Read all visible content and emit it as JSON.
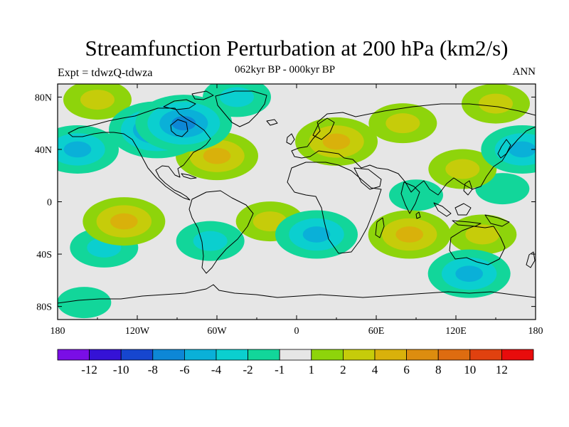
{
  "title": "Streamfunction Perturbation at 200 hPa (km2/s)",
  "subtitle_left": "Expt = tdwzQ-tdwza",
  "subtitle_center": "062kyr BP - 000kyr BP",
  "subtitle_right": "ANN",
  "map": {
    "projection": "cylindrical equidistant",
    "lon_range": [
      -180,
      180
    ],
    "lat_range": [
      -90,
      90
    ],
    "background_color": "#e6e6e6",
    "coastline_color": "#000000",
    "lon_ticks": [
      {
        "value": -180,
        "label": "180"
      },
      {
        "value": -120,
        "label": "120W"
      },
      {
        "value": -60,
        "label": "60W"
      },
      {
        "value": 0,
        "label": "0"
      },
      {
        "value": 60,
        "label": "60E"
      },
      {
        "value": 120,
        "label": "120E"
      },
      {
        "value": 180,
        "label": "180"
      }
    ],
    "lat_ticks": [
      {
        "value": 80,
        "label": "80N"
      },
      {
        "value": 40,
        "label": "40N"
      },
      {
        "value": 0,
        "label": "0"
      },
      {
        "value": -40,
        "label": "40S"
      },
      {
        "value": -80,
        "label": "80S"
      }
    ]
  },
  "colorbar": {
    "colors": [
      "#7a0ee6",
      "#3512d6",
      "#1646cf",
      "#0d87d6",
      "#0ab0d8",
      "#0bcfcf",
      "#12d69a",
      "#e6e6e6",
      "#8ed40b",
      "#c6cc0a",
      "#d9b10b",
      "#dd8d0f",
      "#de6c10",
      "#e0410f",
      "#e80c0c"
    ],
    "labels": [
      "-12",
      "-10",
      "-8",
      "-6",
      "-4",
      "-2",
      "-1",
      "1",
      "2",
      "4",
      "6",
      "8",
      "10",
      "12"
    ]
  },
  "chart_data": {
    "type": "heatmap",
    "variable": "Streamfunction Perturbation at 200 hPa (km2/s)",
    "comparison": "062kyr BP - 000kyr BP",
    "experiment": "tdwzQ-tdwza",
    "season": "ANN",
    "levels": [
      -12,
      -10,
      -8,
      -6,
      -4,
      -2,
      -1,
      1,
      2,
      4,
      6,
      8,
      10,
      12
    ],
    "features": [
      {
        "lon": -85,
        "lat": 60,
        "value": -7
      },
      {
        "lon": -105,
        "lat": 55,
        "value": -6
      },
      {
        "lon": -45,
        "lat": 80,
        "value": -3
      },
      {
        "lon": -165,
        "lat": 40,
        "value": -5
      },
      {
        "lon": 170,
        "lat": 40,
        "value": -5
      },
      {
        "lon": -60,
        "lat": 35,
        "value": 4
      },
      {
        "lon": -150,
        "lat": 78,
        "value": 2
      },
      {
        "lon": 30,
        "lat": 46,
        "value": 4
      },
      {
        "lon": 80,
        "lat": 60,
        "value": 2
      },
      {
        "lon": 150,
        "lat": 75,
        "value": 2
      },
      {
        "lon": 125,
        "lat": 25,
        "value": 2
      },
      {
        "lon": 155,
        "lat": 10,
        "value": -1.5
      },
      {
        "lon": 90,
        "lat": 5,
        "value": -1.5
      },
      {
        "lon": -130,
        "lat": -15,
        "value": 4
      },
      {
        "lon": -20,
        "lat": -15,
        "value": 2
      },
      {
        "lon": 15,
        "lat": -25,
        "value": -4
      },
      {
        "lon": 85,
        "lat": -25,
        "value": 5
      },
      {
        "lon": 140,
        "lat": -25,
        "value": 3
      },
      {
        "lon": -65,
        "lat": -30,
        "value": -3
      },
      {
        "lon": -145,
        "lat": -35,
        "value": -2
      },
      {
        "lon": 130,
        "lat": -55,
        "value": -4
      },
      {
        "lon": -160,
        "lat": -77,
        "value": -1.5
      }
    ]
  }
}
